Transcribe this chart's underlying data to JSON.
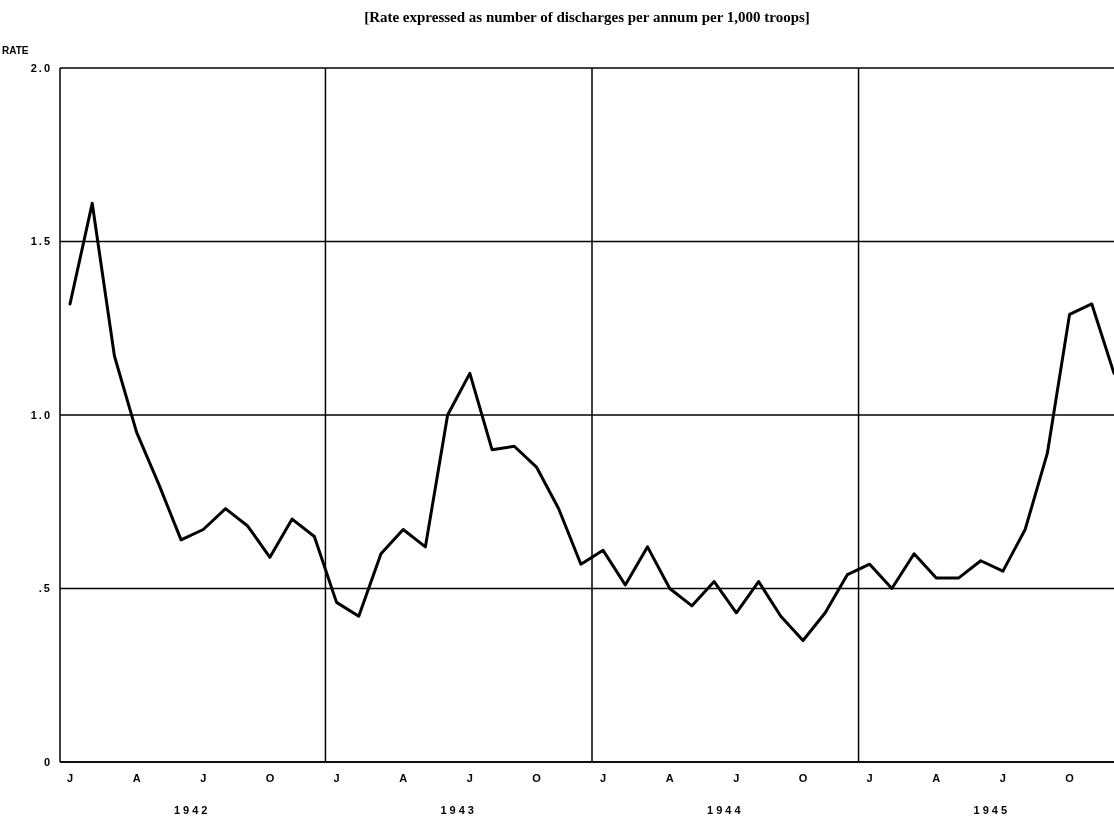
{
  "chart_data": {
    "type": "line",
    "title": "[Rate expressed as number of discharges per annum per 1,000 troops]",
    "ylabel": "RATE",
    "categories": [
      "J",
      null,
      null,
      "A",
      null,
      null,
      "J",
      null,
      null,
      "O",
      null,
      null,
      "J",
      null,
      null,
      "A",
      null,
      null,
      "J",
      null,
      null,
      "O",
      null,
      null,
      "J",
      null,
      null,
      "A",
      null,
      null,
      "J",
      null,
      null,
      "O",
      null,
      null,
      "J",
      null,
      null,
      "A",
      null,
      null,
      "J",
      null,
      null,
      "O",
      null,
      null
    ],
    "series": [
      {
        "color": "#000000",
        "values": [
          1.32,
          1.61,
          1.17,
          0.95,
          0.8,
          0.64,
          0.67,
          0.73,
          0.68,
          0.59,
          0.7,
          0.65,
          0.46,
          0.42,
          0.6,
          0.67,
          0.62,
          1.0,
          1.12,
          0.9,
          0.91,
          0.85,
          0.73,
          0.57,
          0.61,
          0.51,
          0.62,
          0.5,
          0.45,
          0.52,
          0.43,
          0.52,
          0.42,
          0.35,
          0.43,
          0.54,
          0.57,
          0.5,
          0.6,
          0.53,
          0.53,
          0.58,
          0.55,
          0.67,
          0.89,
          1.29,
          1.32,
          1.12
        ]
      }
    ],
    "ylim": [
      0,
      2
    ],
    "yticks": [
      0,
      {
        "value": 0.5,
        "label": ".5"
      },
      {
        "value": 1,
        "label": "1.0"
      },
      {
        "value": 1.5,
        "label": "1.5"
      },
      {
        "value": 2,
        "label": "2.0"
      }
    ],
    "grid": true,
    "annotations": [
      "1942",
      "1943",
      "1944",
      "1945"
    ],
    "marker": "none",
    "line_style": "solid"
  }
}
